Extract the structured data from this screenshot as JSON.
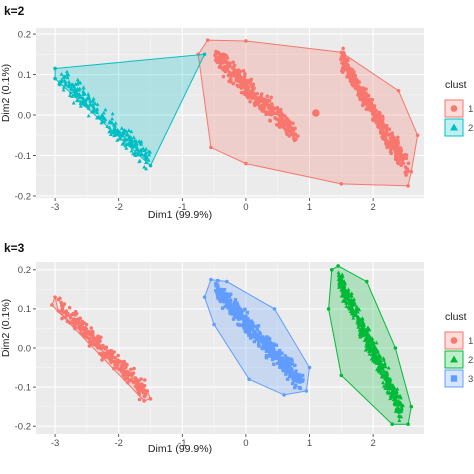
{
  "chart_data": [
    {
      "type": "scatter",
      "title": "k=2",
      "xlabel": "Dim1 (99.9%)",
      "ylabel": "Dim2 (0.1%)",
      "xlim": [
        -3.3,
        2.8
      ],
      "ylim": [
        -0.205,
        0.215
      ],
      "x_ticks": [
        -3,
        -2,
        -1,
        0,
        1,
        2
      ],
      "y_ticks": [
        -0.2,
        -0.1,
        0.0,
        0.1,
        0.2
      ],
      "x_tick_labels": [
        "-3",
        "-2",
        "-1",
        "0",
        "1",
        "2"
      ],
      "y_tick_labels": [
        "-0.2",
        "-0.1",
        "0.0",
        "0.1",
        "0.2"
      ],
      "grid": true,
      "legend_title": "clust",
      "legend_position": "right",
      "series": [
        {
          "cluster": "1",
          "color": "#F8766D",
          "shape": "circle",
          "centroid": [
            1.1,
            0.005
          ],
          "hull": [
            [
              -0.6,
              0.185
            ],
            [
              0.0,
              0.183
            ],
            [
              1.5,
              0.155
            ],
            [
              2.4,
              0.06
            ],
            [
              2.7,
              -0.05
            ],
            [
              2.6,
              -0.14
            ],
            [
              2.55,
              -0.175
            ],
            [
              1.5,
              -0.17
            ],
            [
              0.0,
              -0.12
            ],
            [
              -0.55,
              -0.08
            ],
            [
              -0.75,
              0.15
            ]
          ],
          "groups": [
            {
              "x_range": [
                -0.55,
                0.85
              ],
              "y_range": [
                0.16,
                -0.06
              ],
              "n": 380
            },
            {
              "x_range": [
                1.45,
                2.6
              ],
              "y_range": [
                0.155,
                -0.15
              ],
              "n": 380
            }
          ]
        },
        {
          "cluster": "2",
          "color": "#00BFC4",
          "shape": "triangle",
          "hull": [
            [
              -3.0,
              0.115
            ],
            [
              -0.65,
              0.15
            ],
            [
              -1.5,
              -0.125
            ],
            [
              -3.0,
              0.09
            ]
          ],
          "groups": [
            {
              "x_range": [
                -3.0,
                -1.45
              ],
              "y_range": [
                0.105,
                -0.12
              ],
              "n": 260
            }
          ]
        }
      ]
    },
    {
      "type": "scatter",
      "title": "k=3",
      "xlabel": "Dim1 (99.9%)",
      "ylabel": "Dim2 (0.1%)",
      "xlim": [
        -3.3,
        2.8
      ],
      "ylim": [
        -0.22,
        0.22
      ],
      "x_ticks": [
        -3,
        -2,
        -1,
        0,
        1,
        2
      ],
      "y_ticks": [
        -0.2,
        -0.1,
        0.0,
        0.1,
        0.2
      ],
      "x_tick_labels": [
        "-3",
        "-2",
        "-1",
        "0",
        "1",
        "2"
      ],
      "y_tick_labels": [
        "-0.2",
        "-0.1",
        "0.0",
        "0.1",
        "0.2"
      ],
      "grid": true,
      "legend_title": "clust",
      "legend_position": "right",
      "series": [
        {
          "cluster": "1",
          "color": "#F8766D",
          "shape": "circle",
          "hull": [
            [
              -3.0,
              0.13
            ],
            [
              -2.95,
              0.095
            ],
            [
              -1.55,
              -0.11
            ],
            [
              -1.5,
              -0.13
            ],
            [
              -1.6,
              -0.135
            ],
            [
              -3.05,
              0.11
            ]
          ],
          "groups": [
            {
              "x_range": [
                -3.0,
                -1.5
              ],
              "y_range": [
                0.12,
                -0.125
              ],
              "n": 260
            }
          ]
        },
        {
          "cluster": "2",
          "color": "#00BA38",
          "shape": "triangle",
          "hull": [
            [
              1.45,
              0.21
            ],
            [
              1.9,
              0.17
            ],
            [
              2.35,
              0.0
            ],
            [
              2.6,
              -0.15
            ],
            [
              2.55,
              -0.195
            ],
            [
              2.3,
              -0.195
            ],
            [
              1.5,
              -0.07
            ],
            [
              1.3,
              0.1
            ],
            [
              1.35,
              0.2
            ]
          ],
          "groups": [
            {
              "x_range": [
                1.4,
                2.5
              ],
              "y_range": [
                0.2,
                -0.18
              ],
              "n": 520
            }
          ]
        },
        {
          "cluster": "3",
          "color": "#619CFF",
          "shape": "square",
          "hull": [
            [
              -0.55,
              0.175
            ],
            [
              -0.3,
              0.17
            ],
            [
              0.45,
              0.1
            ],
            [
              1.0,
              -0.05
            ],
            [
              0.95,
              -0.11
            ],
            [
              0.6,
              -0.12
            ],
            [
              0.05,
              -0.08
            ],
            [
              -0.5,
              0.06
            ],
            [
              -0.65,
              0.13
            ]
          ],
          "groups": [
            {
              "x_range": [
                -0.55,
                0.95
              ],
              "y_range": [
                0.16,
                -0.1
              ],
              "n": 420
            }
          ]
        }
      ]
    }
  ]
}
